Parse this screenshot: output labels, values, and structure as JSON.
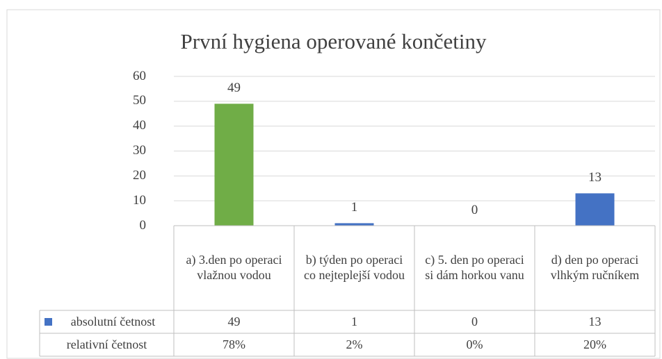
{
  "chart_data": {
    "type": "bar",
    "title": "První hygiena operované končetiny",
    "categories": [
      "a) 3.den po operaci vlažnou vodou",
      "b) týden po operaci co nejteplejší vodou",
      "c) 5. den po operaci si dám horkou vanu",
      "d) den po operaci vlhkým ručníkem"
    ],
    "series": [
      {
        "name": "absolutní četnost",
        "color": "#4472c4",
        "values": [
          49,
          1,
          0,
          13
        ]
      }
    ],
    "bar_colors": [
      "#70ad47",
      "#4472c4",
      "#4472c4",
      "#4472c4"
    ],
    "relative": {
      "name": "relativní četnost",
      "values": [
        78,
        2,
        0,
        20
      ],
      "value_labels": [
        "78%",
        "2%",
        "0%",
        "20%"
      ]
    },
    "ylim": [
      0,
      60
    ],
    "yticks": [
      0,
      10,
      20,
      30,
      40,
      50,
      60
    ],
    "grid": true
  }
}
